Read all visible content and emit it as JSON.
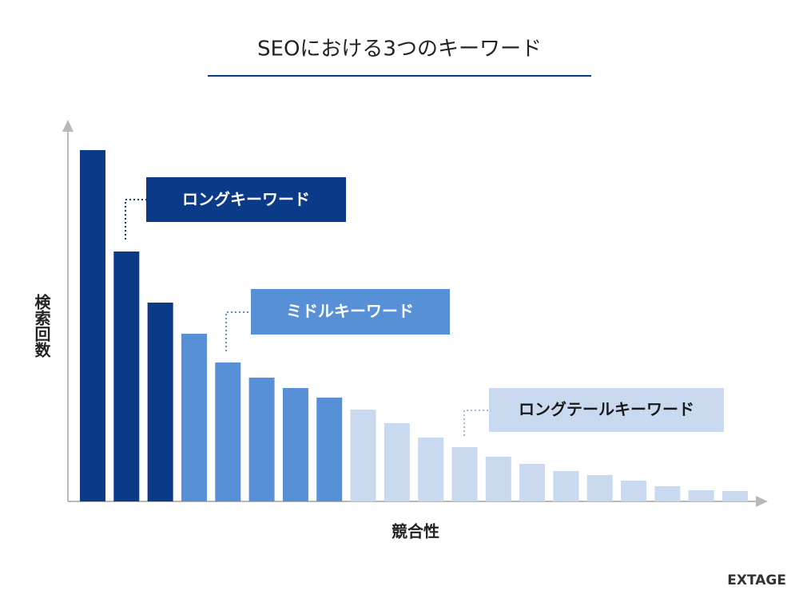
{
  "chart_data": {
    "type": "bar",
    "title": "SEOにおける3つのキーワード",
    "x_label": "競合性",
    "y_label": "検索回数",
    "brand": "EXTAGE",
    "series": [
      {
        "name": "ロングキーワード",
        "color": "#0b3a88",
        "values": [
          440,
          313,
          249
        ]
      },
      {
        "name": "ミドルキーワード",
        "color": "#5890d8",
        "values": [
          210,
          174,
          155,
          142,
          130
        ]
      },
      {
        "name": "ロングテールキーワード",
        "color": "#c9d9f0",
        "values": [
          115,
          98,
          80,
          68,
          56,
          47,
          38,
          33,
          26,
          19,
          14,
          13
        ]
      }
    ]
  }
}
